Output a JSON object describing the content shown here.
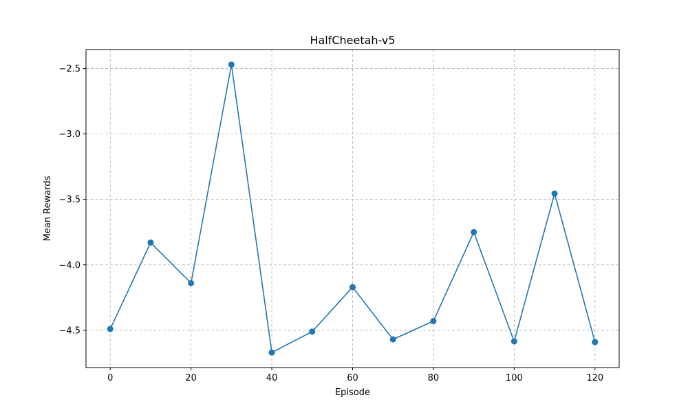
{
  "chart_data": {
    "type": "line",
    "title": "HalfCheetah-v5",
    "xlabel": "Episode",
    "ylabel": "Mean Rewards",
    "xlim": [
      -6,
      126
    ],
    "ylim": [
      -4.785,
      -2.355
    ],
    "xticks": [
      0,
      20,
      40,
      60,
      80,
      100,
      120
    ],
    "xtick_labels": [
      "0",
      "20",
      "40",
      "60",
      "80",
      "100",
      "120"
    ],
    "yticks": [
      -4.5,
      -4.0,
      -3.5,
      -3.0,
      -2.5
    ],
    "ytick_labels": [
      "−4.5",
      "−4.0",
      "−3.5",
      "−3.0",
      "−2.5"
    ],
    "grid": true,
    "grid_style": "dashed",
    "marker": "circle",
    "series": [
      {
        "color": "#1f77b4",
        "x": [
          0,
          10,
          20,
          30,
          40,
          50,
          60,
          70,
          80,
          90,
          100,
          110,
          120
        ],
        "y": [
          -4.49,
          -3.83,
          -4.14,
          -2.47,
          -4.67,
          -4.51,
          -4.17,
          -4.57,
          -4.43,
          -3.75,
          -4.585,
          -3.455,
          -4.59
        ]
      }
    ]
  }
}
